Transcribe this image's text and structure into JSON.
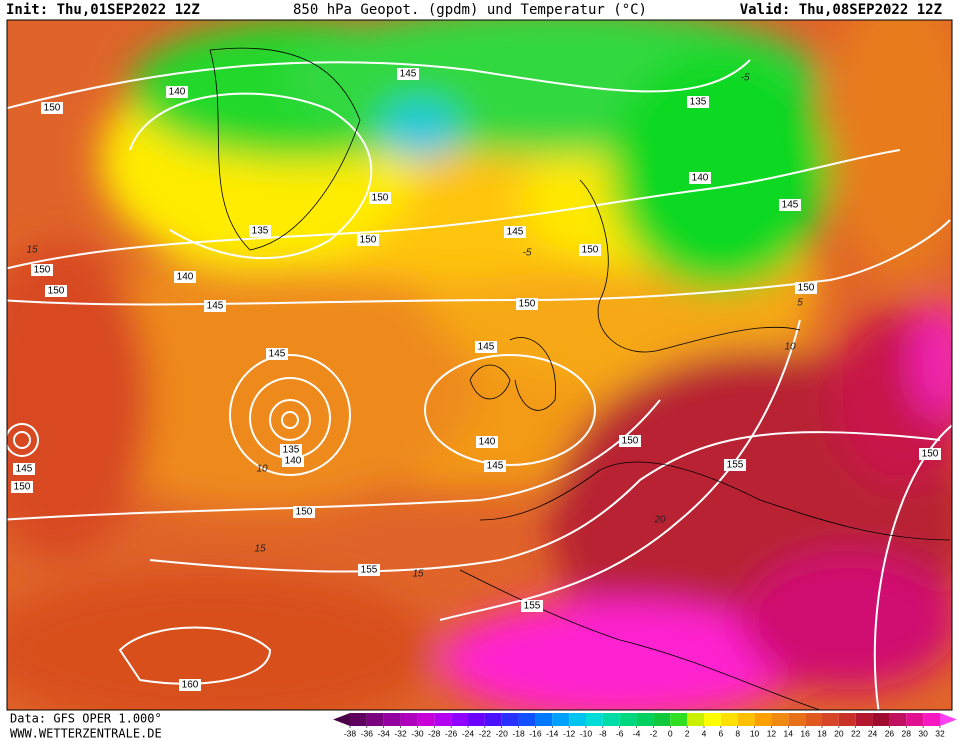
{
  "header": {
    "init": "Init: Thu,01SEP2022 12Z",
    "title": "850 hPa Geopot. (gpdm) und Temperatur (°C)",
    "valid": "Valid: Thu,08SEP2022 12Z"
  },
  "footer": {
    "source": "Data: GFS OPER 1.000°",
    "site": "WWW.WETTERZENTRALE.DE"
  },
  "map": {
    "geopotential_labels": [
      140,
      150,
      145,
      135,
      140,
      145,
      150,
      135,
      150,
      145,
      150,
      150,
      140,
      150,
      145,
      150,
      150,
      145,
      145,
      135,
      140,
      140,
      150,
      155,
      145,
      145,
      150,
      150,
      155,
      155,
      160,
      150
    ],
    "temperature_labels": [
      -5,
      -5,
      15,
      10,
      15,
      15,
      20,
      10,
      5
    ]
  },
  "colorbar": {
    "ticks": [
      -38,
      -36,
      -34,
      -32,
      -30,
      -28,
      -26,
      -24,
      -22,
      -20,
      -18,
      -16,
      -14,
      -12,
      -10,
      -8,
      -6,
      -4,
      -2,
      0,
      2,
      4,
      6,
      8,
      10,
      12,
      14,
      16,
      18,
      20,
      22,
      24,
      26,
      28,
      30,
      32
    ],
    "colors": [
      "#4a0048",
      "#5e005e",
      "#7a0080",
      "#9400a0",
      "#ae00bc",
      "#c800d8",
      "#b400f0",
      "#9000ff",
      "#6c00ff",
      "#4a10ff",
      "#2a30ff",
      "#1050ff",
      "#0078ff",
      "#00a0ff",
      "#00c4f0",
      "#00dcd8",
      "#00dca8",
      "#00d880",
      "#00d060",
      "#10c83c",
      "#30e020",
      "#c8f000",
      "#ffff00",
      "#ffe000",
      "#ffc000",
      "#ffa000",
      "#f08a10",
      "#e87018",
      "#e05a20",
      "#d84628",
      "#c83028",
      "#b41830",
      "#a00c30",
      "#c01060",
      "#e01090",
      "#f818c0",
      "#ff40f0"
    ]
  }
}
